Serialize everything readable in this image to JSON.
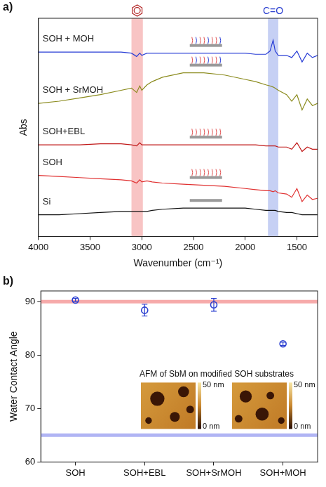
{
  "chart_data": [
    {
      "panel_label": "a)",
      "type": "line",
      "x_label": "Wavenumber (cm⁻¹)",
      "y_label": "Abs",
      "x": [
        4000,
        3800,
        3600,
        3400,
        3200,
        3100,
        3050,
        3020,
        3000,
        2950,
        2900,
        2800,
        2600,
        2400,
        2200,
        2000,
        1900,
        1800,
        1760,
        1730,
        1710,
        1680,
        1600,
        1550,
        1500,
        1450,
        1400,
        1350,
        1300
      ],
      "series": [
        {
          "name": "SOH + MOH",
          "color": "#2a3fd6",
          "values": [
            8.45,
            8.45,
            8.45,
            8.45,
            8.45,
            8.4,
            8.25,
            8.4,
            8.3,
            8.4,
            8.4,
            8.4,
            8.4,
            8.4,
            8.4,
            8.4,
            8.35,
            8.35,
            8.5,
            9.0,
            8.5,
            8.3,
            8.3,
            8.2,
            8.5,
            8.0,
            8.4,
            8.2,
            8.3
          ]
        },
        {
          "name": "SOH + SrMOH",
          "color": "#8b8b1e",
          "values": [
            6.1,
            6.2,
            6.35,
            6.5,
            6.7,
            6.8,
            6.6,
            6.9,
            6.7,
            6.95,
            7.1,
            7.3,
            7.5,
            7.5,
            7.4,
            7.2,
            7.1,
            6.95,
            6.9,
            6.85,
            6.8,
            6.7,
            6.5,
            6.2,
            6.5,
            5.8,
            6.3,
            6.0,
            6.1
          ]
        },
        {
          "name": "SOH+EBL",
          "color": "#c01818",
          "values": [
            4.2,
            4.2,
            4.2,
            4.25,
            4.25,
            4.2,
            4.15,
            4.3,
            4.2,
            4.2,
            4.2,
            4.2,
            4.2,
            4.2,
            4.2,
            4.2,
            4.2,
            4.15,
            4.15,
            4.15,
            4.15,
            4.1,
            4.1,
            4.0,
            4.3,
            3.9,
            4.1,
            4.0,
            4.0
          ]
        },
        {
          "name": "SOH",
          "color": "#e03030",
          "values": [
            2.8,
            2.75,
            2.7,
            2.65,
            2.6,
            2.55,
            2.45,
            2.6,
            2.5,
            2.55,
            2.5,
            2.45,
            2.4,
            2.35,
            2.3,
            2.2,
            2.15,
            2.1,
            2.1,
            2.05,
            2.1,
            2.0,
            1.95,
            1.8,
            2.2,
            1.6,
            1.9,
            1.7,
            1.75
          ]
        },
        {
          "name": "Si",
          "color": "#111111",
          "values": [
            1.0,
            1.0,
            1.05,
            1.1,
            1.15,
            1.15,
            1.15,
            1.15,
            1.15,
            1.15,
            1.2,
            1.25,
            1.3,
            1.3,
            1.3,
            1.3,
            1.25,
            1.2,
            1.2,
            1.2,
            1.2,
            1.15,
            1.1,
            1.1,
            1.05,
            1.0,
            1.0,
            1.0,
            1.0
          ]
        }
      ],
      "xlim": [
        4000,
        1300
      ],
      "xticks": [
        4000,
        3500,
        3000,
        2500,
        2000,
        1500
      ],
      "ylim": [
        0,
        10
      ],
      "yticks": [],
      "tick_labels": "x",
      "grid": false,
      "bands": [
        {
          "from": 3100,
          "to": 2990,
          "color": "#f6b0b0"
        },
        {
          "from": 1780,
          "to": 1680,
          "color": "#b3c0f0",
          "label": "C=O"
        }
      ]
    },
    {
      "panel_label": "b)",
      "type": "scatter",
      "categories": [
        "SOH",
        "SOH+EBL",
        "SOH+SrMOH",
        "SOH+MOH"
      ],
      "values": [
        90.3,
        88.4,
        89.4,
        82.1
      ],
      "errors": [
        0.3,
        1.1,
        1.2,
        0.3
      ],
      "color": "#2b3fd0",
      "marker": "open_circle",
      "y_label": "Water Contact Angle",
      "ylim": [
        60,
        92
      ],
      "yticks": [
        60,
        70,
        80,
        90
      ],
      "grid": false,
      "reference_lines": [
        {
          "value": 90,
          "color": "#f6aaaa"
        },
        {
          "value": 65,
          "color": "#b0b4f4"
        }
      ],
      "inset": {
        "title": "AFM of SbM on modified SOH substrates",
        "color_scale_labels": [
          "50 nm",
          "0 nm"
        ]
      }
    }
  ]
}
